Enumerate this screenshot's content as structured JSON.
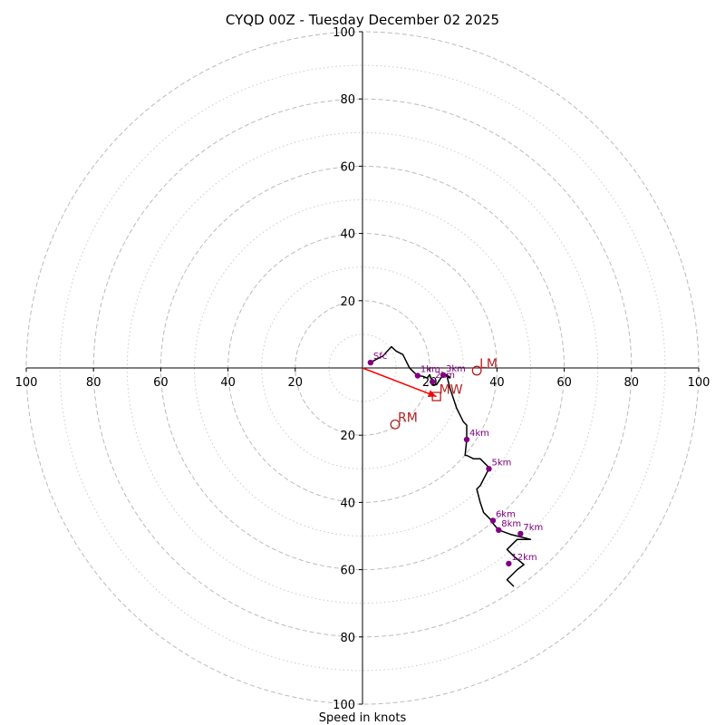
{
  "chart_data": {
    "type": "hodograph",
    "title": "CYQD 00Z - Tuesday December 02 2025",
    "xlabel": "Speed in knots",
    "xlim": [
      -100,
      100
    ],
    "ylim": [
      -100,
      100
    ],
    "rings_major": [
      20,
      40,
      60,
      80,
      100
    ],
    "rings_minor": [
      10,
      30,
      50,
      70,
      90
    ],
    "ticks_x": [
      {
        "value": -100,
        "label": "100"
      },
      {
        "value": -80,
        "label": "80"
      },
      {
        "value": -60,
        "label": "60"
      },
      {
        "value": -40,
        "label": "40"
      },
      {
        "value": -20,
        "label": "20"
      },
      {
        "value": 20,
        "label": "20"
      },
      {
        "value": 40,
        "label": "40"
      },
      {
        "value": 60,
        "label": "60"
      },
      {
        "value": 80,
        "label": "80"
      },
      {
        "value": 100,
        "label": "100"
      }
    ],
    "ticks_y": [
      {
        "value": 100,
        "label": "100"
      },
      {
        "value": 80,
        "label": "80"
      },
      {
        "value": 60,
        "label": "60"
      },
      {
        "value": 40,
        "label": "40"
      },
      {
        "value": 20,
        "label": "20"
      },
      {
        "value": -20,
        "label": "20"
      },
      {
        "value": -40,
        "label": "40"
      },
      {
        "value": -60,
        "label": "60"
      },
      {
        "value": -80,
        "label": "80"
      },
      {
        "value": -100,
        "label": "100"
      }
    ],
    "wind_profile": {
      "u": [
        2.4,
        4,
        6,
        8.6,
        10,
        12,
        13,
        14,
        15,
        16.4,
        18,
        19.2,
        20,
        21,
        22,
        24,
        26,
        26,
        25,
        26,
        27,
        28,
        29,
        30,
        31,
        31,
        30.5,
        31,
        33,
        35,
        38,
        37.6,
        35,
        34,
        35,
        36,
        37,
        38,
        39,
        40.5,
        44,
        46,
        50,
        46,
        43,
        45,
        48,
        46,
        44,
        43,
        44,
        45
      ],
      "v": [
        1.6,
        2.5,
        3.5,
        6.3,
        5,
        4,
        2,
        0,
        -1,
        -2.3,
        -2.5,
        -3,
        -2,
        -5,
        -5,
        -2,
        -3,
        -2.8,
        -2,
        -6,
        -9,
        -12,
        -14,
        -16,
        -17,
        -21.3,
        -26,
        -26,
        -27,
        -27,
        -30,
        -30,
        -35,
        -36,
        -40,
        -43,
        -44,
        -45,
        -46.5,
        -48.2,
        -49.5,
        -50,
        -51,
        -51,
        -54,
        -56,
        -58.5,
        -60,
        -62,
        -63,
        -64,
        -65
      ]
    },
    "height_markers": [
      {
        "label": "Sfc",
        "u": 2.4,
        "v": 1.6
      },
      {
        "label": "1km",
        "u": 16.4,
        "v": -2.3
      },
      {
        "label": "2km",
        "u": 20.8,
        "v": -4.1
      },
      {
        "label": "3km",
        "u": 24,
        "v": -2.1
      },
      {
        "label": "4km",
        "u": 31,
        "v": -21.3
      },
      {
        "label": "5km",
        "u": 37.6,
        "v": -30
      },
      {
        "label": "6km",
        "u": 38.8,
        "v": -45.4
      },
      {
        "label": "8km",
        "u": 40.5,
        "v": -48.2
      },
      {
        "label": "7km",
        "u": 47,
        "v": -49.3
      },
      {
        "label": "12km",
        "u": 43.5,
        "v": -58.2
      }
    ],
    "storm_motion": [
      {
        "label": "LM",
        "u": 34,
        "v": -0.8,
        "marker": "circle"
      },
      {
        "label": "MW",
        "u": 22,
        "v": -8.5,
        "marker": "square"
      },
      {
        "label": "RM",
        "u": 9.7,
        "v": -16.8,
        "marker": "circle"
      }
    ],
    "mean_wind_vector": {
      "u": 22,
      "v": -8.5
    }
  },
  "colors": {
    "grid_major": "#bbbbbb",
    "grid_minor": "#cccccc",
    "trace": "#000000",
    "height_marker": "#800080",
    "storm_motion": "#b22222",
    "vector": "#ff0000"
  }
}
